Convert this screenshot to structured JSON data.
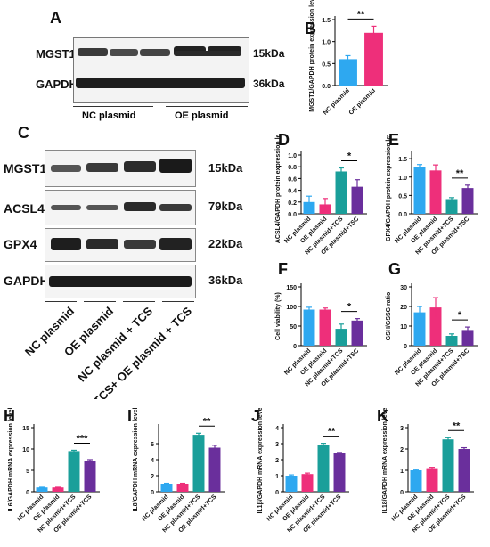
{
  "colors": {
    "blue": "#2ea8f0",
    "pink": "#ee2f7a",
    "teal": "#1a9f9a",
    "purple": "#6a2f9c"
  },
  "panels": {
    "A": "A",
    "B": "B",
    "C": "C",
    "D": "D",
    "E": "E",
    "F": "F",
    "G": "G",
    "H": "H",
    "I": "I",
    "J": "J",
    "K": "K"
  },
  "blotA": {
    "proteins": [
      "MGST1",
      "GAPDH"
    ],
    "sizes": [
      "15kDa",
      "36kDa"
    ],
    "groups": [
      "NC plasmid",
      "OE plasmid"
    ]
  },
  "blotC": {
    "proteins": [
      "MGST1",
      "ACSL4",
      "GPX4",
      "GAPDH"
    ],
    "sizes": [
      "15kDa",
      "79kDa",
      "22kDa",
      "36kDa"
    ],
    "lanes": [
      "NC plasmid",
      "OE plasmid",
      "NC plasmid + TCS",
      "TCS+ OE plasmid + TCS"
    ]
  },
  "chart_data": [
    {
      "id": "B",
      "type": "bar",
      "categories": [
        "NC plasmid",
        "OE plasmid"
      ],
      "values": [
        0.6,
        1.2
      ],
      "errors": [
        0.08,
        0.15
      ],
      "ylim": [
        0,
        1.5
      ],
      "yticks": [
        "0.0",
        "0.5",
        "1.0",
        "1.5"
      ],
      "ylabel": "MGST1/GAPDH protein expression level",
      "sig": [
        {
          "from": 0,
          "to": 1,
          "label": "**"
        }
      ]
    },
    {
      "id": "D",
      "type": "bar",
      "categories": [
        "NC plasmid",
        "OE plasmid",
        "NC plasmid+TCS",
        "OE plasmid+TSC"
      ],
      "values": [
        0.2,
        0.16,
        0.72,
        0.46
      ],
      "errors": [
        0.1,
        0.1,
        0.06,
        0.12
      ],
      "ylim": [
        0,
        1.0
      ],
      "yticks": [
        "0.0",
        "0.2",
        "0.4",
        "0.6",
        "0.8",
        "1.0"
      ],
      "ylabel": "ACSL4/GAPDH protein expression level",
      "sig": [
        {
          "from": 2,
          "to": 3,
          "label": "*"
        }
      ]
    },
    {
      "id": "E",
      "type": "bar",
      "categories": [
        "NC plasmid",
        "OE plasmid",
        "NC plasmid+TCS",
        "OE plasmid+TSC"
      ],
      "values": [
        1.28,
        1.18,
        0.4,
        0.7
      ],
      "errors": [
        0.06,
        0.15,
        0.04,
        0.08
      ],
      "ylim": [
        0,
        1.6
      ],
      "yticks": [
        "0.0",
        "0.5",
        "1.0",
        "1.5"
      ],
      "ylabel": "GPX4/GAPDH protein expression level",
      "sig": [
        {
          "from": 2,
          "to": 3,
          "label": "**"
        }
      ]
    },
    {
      "id": "F",
      "type": "bar",
      "categories": [
        "NC plasmid",
        "OE plasmid",
        "NC plasmid+TCS",
        "OE plasmid+TSC"
      ],
      "values": [
        92,
        92,
        43,
        64
      ],
      "errors": [
        6,
        4,
        12,
        5
      ],
      "ylim": [
        0,
        150
      ],
      "yticks": [
        "0",
        "50",
        "100",
        "150"
      ],
      "ylabel": "Cell viability (%)",
      "sig": [
        {
          "from": 2,
          "to": 3,
          "label": "*"
        }
      ]
    },
    {
      "id": "G",
      "type": "bar",
      "categories": [
        "NC plasmid",
        "OE plasmid",
        "NC plasmid+TCS",
        "OE plasmid+TSC"
      ],
      "values": [
        17,
        19.5,
        5,
        8
      ],
      "errors": [
        3,
        5,
        1,
        1.5
      ],
      "ylim": [
        0,
        30
      ],
      "yticks": [
        "0",
        "10",
        "20",
        "30"
      ],
      "ylabel": "GSH/GSSG ratio",
      "sig": [
        {
          "from": 2,
          "to": 3,
          "label": "*"
        }
      ]
    },
    {
      "id": "H",
      "type": "bar",
      "categories": [
        "NC plasmid",
        "OE plasmid",
        "NC plasmid+TCS",
        "OE plasmid+TCS"
      ],
      "values": [
        1,
        1,
        9.5,
        7.2
      ],
      "errors": [
        0.05,
        0.05,
        0.2,
        0.3
      ],
      "ylim": [
        0,
        15
      ],
      "yticks": [
        "0",
        "5",
        "10",
        "15"
      ],
      "ylabel": "IL6/GAPDH mRNA expression level",
      "sig": [
        {
          "from": 2,
          "to": 3,
          "label": "***"
        }
      ]
    },
    {
      "id": "I",
      "type": "bar",
      "categories": [
        "NC plasmid",
        "OE plasmid",
        "NC plasmid+TCS",
        "OE plasmid+TCS"
      ],
      "values": [
        1,
        1,
        7.1,
        5.5
      ],
      "errors": [
        0.05,
        0.05,
        0.2,
        0.3
      ],
      "ylim": [
        0,
        8
      ],
      "yticks": [
        "0",
        "2",
        "4",
        "6"
      ],
      "ylabel": "IL8/GAPDH mRNA expression level",
      "sig": [
        {
          "from": 2,
          "to": 3,
          "label": "**"
        }
      ]
    },
    {
      "id": "J",
      "type": "bar",
      "categories": [
        "NC plasmid",
        "OE plasmid",
        "NC plasmid+TCS",
        "OE plasmid+TCS"
      ],
      "values": [
        1,
        1.1,
        2.9,
        2.4
      ],
      "errors": [
        0.05,
        0.06,
        0.12,
        0.05
      ],
      "ylim": [
        0,
        4
      ],
      "yticks": [
        "0",
        "1",
        "2",
        "3",
        "4"
      ],
      "ylabel": "IL1β/GAPDH mRNA expression level",
      "sig": [
        {
          "from": 2,
          "to": 3,
          "label": "**"
        }
      ]
    },
    {
      "id": "K",
      "type": "bar",
      "categories": [
        "NC plasmid",
        "OE plasmid",
        "NC plasmid+TCS",
        "OE plasmid+TCS"
      ],
      "values": [
        1,
        1.1,
        2.45,
        2.0
      ],
      "errors": [
        0.03,
        0.04,
        0.08,
        0.06
      ],
      "ylim": [
        0,
        3
      ],
      "yticks": [
        "0",
        "1",
        "2",
        "3"
      ],
      "ylabel": "IL18/GAPDH mRNA expression level",
      "sig": [
        {
          "from": 2,
          "to": 3,
          "label": "**"
        }
      ]
    }
  ]
}
